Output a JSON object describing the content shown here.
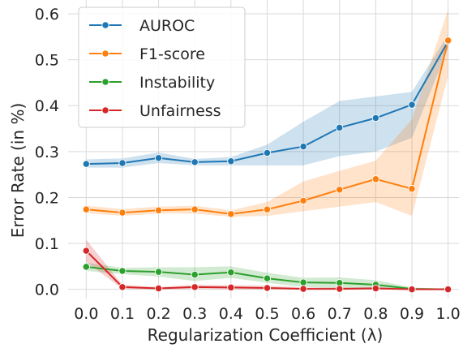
{
  "chart_data": {
    "type": "line",
    "xlabel": "Regularization Coefficient (λ)",
    "ylabel": "Error Rate (in %)",
    "x": [
      0.0,
      0.1,
      0.2,
      0.3,
      0.4,
      0.5,
      0.6,
      0.7,
      0.8,
      0.9,
      1.0
    ],
    "x_tick_labels": [
      "0.0",
      "0.1",
      "0.2",
      "0.3",
      "0.4",
      "0.5",
      "0.6",
      "0.7",
      "0.8",
      "0.9",
      "1.0"
    ],
    "y_ticks": [
      0.0,
      0.1,
      0.2,
      0.3,
      0.4,
      0.5,
      0.6
    ],
    "y_tick_labels": [
      "0.0",
      "0.1",
      "0.2",
      "0.3",
      "0.4",
      "0.5",
      "0.6"
    ],
    "xlim": [
      -0.05,
      1.03
    ],
    "ylim": [
      -0.02,
      0.63
    ],
    "grid": true,
    "legend_position": "top-left",
    "series": [
      {
        "name": "AUROC",
        "color": "#1f77b4",
        "values": [
          0.273,
          0.275,
          0.286,
          0.277,
          0.279,
          0.297,
          0.311,
          0.352,
          0.373,
          0.402,
          0.54
        ],
        "lower": [
          0.265,
          0.265,
          0.275,
          0.27,
          0.27,
          0.27,
          0.27,
          0.29,
          0.3,
          0.33,
          0.525
        ],
        "upper": [
          0.283,
          0.285,
          0.298,
          0.284,
          0.288,
          0.315,
          0.365,
          0.41,
          0.42,
          0.43,
          0.555
        ]
      },
      {
        "name": "F1-score",
        "color": "#ff7f0e",
        "values": [
          0.174,
          0.167,
          0.172,
          0.174,
          0.164,
          0.174,
          0.193,
          0.217,
          0.24,
          0.219,
          0.542
        ],
        "lower": [
          0.166,
          0.16,
          0.165,
          0.165,
          0.158,
          0.16,
          0.17,
          0.18,
          0.19,
          0.16,
          0.465
        ],
        "upper": [
          0.182,
          0.175,
          0.18,
          0.182,
          0.172,
          0.19,
          0.235,
          0.258,
          0.28,
          0.37,
          0.61
        ]
      },
      {
        "name": "Instability",
        "color": "#2ca02c",
        "values": [
          0.049,
          0.04,
          0.038,
          0.032,
          0.037,
          0.024,
          0.015,
          0.014,
          0.01,
          0.001,
          0.0
        ],
        "lower": [
          0.04,
          0.033,
          0.028,
          0.018,
          0.025,
          0.014,
          0.005,
          0.003,
          0.001,
          0.0,
          0.0
        ],
        "upper": [
          0.058,
          0.047,
          0.048,
          0.048,
          0.05,
          0.036,
          0.025,
          0.026,
          0.02,
          0.004,
          0.001
        ]
      },
      {
        "name": "Unfairness",
        "color": "#d62728",
        "values": [
          0.084,
          0.005,
          0.002,
          0.005,
          0.004,
          0.003,
          0.001,
          0.001,
          0.002,
          0.0,
          0.0
        ],
        "lower": [
          0.06,
          0.001,
          0.0,
          0.001,
          0.0,
          0.0,
          0.0,
          0.0,
          0.0,
          0.0,
          0.0
        ],
        "upper": [
          0.108,
          0.01,
          0.005,
          0.01,
          0.009,
          0.008,
          0.004,
          0.004,
          0.005,
          0.002,
          0.001
        ]
      }
    ]
  }
}
